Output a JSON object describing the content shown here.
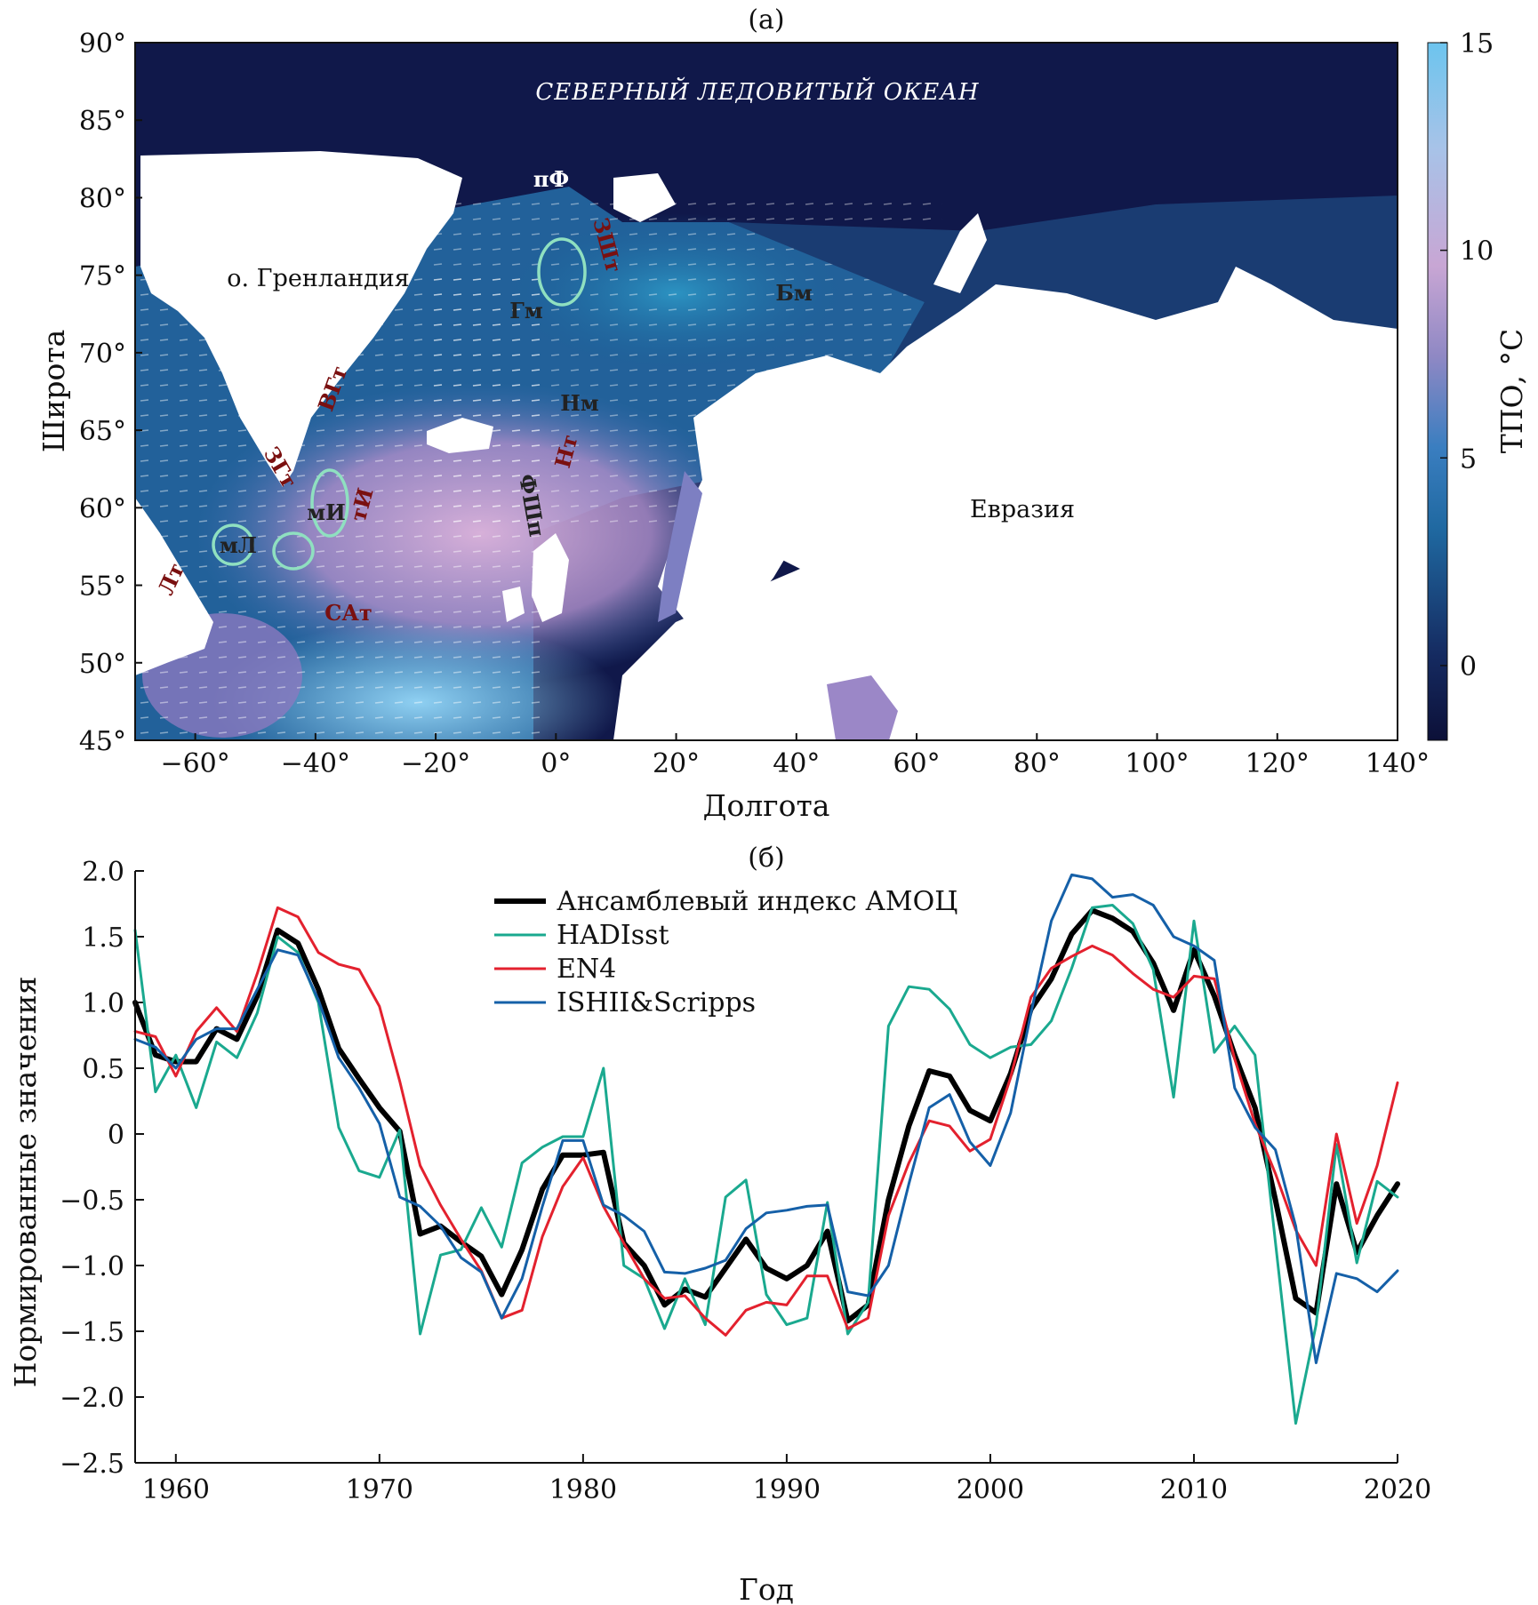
{
  "panel_a": {
    "label": "(a)",
    "ocean_title": "СЕВЕРНЫЙ ЛЕДОВИТЫЙ ОКЕАН",
    "greenland": "о. Гренландия",
    "eurasia": "Евразия",
    "x_title": "Долгота",
    "y_title": "Широта",
    "x_ticks": [
      "−60°",
      "−40°",
      "−20°",
      "0°",
      "20°",
      "40°",
      "60°",
      "80°",
      "100°",
      "120°",
      "140°"
    ],
    "y_ticks": [
      "90°",
      "85°",
      "80°",
      "75°",
      "70°",
      "65°",
      "60°",
      "55°",
      "50°",
      "45°"
    ],
    "colorbar_title": "ТПО, °C",
    "colorbar_ticks": [
      "15",
      "10",
      "5",
      "0"
    ],
    "colorbar_range": [
      -1.8,
      15
    ],
    "region_labels": {
      "pf": "пФ",
      "zsht": "ЗШт",
      "gm": "Гм",
      "bm": "Бм",
      "nm": "Нм",
      "nt": "Нт",
      "vgt": "ВГт",
      "zgt": "ЗГт",
      "mi": "мИ",
      "ti": "тИ",
      "ml": "мЛ",
      "lt": "Лт",
      "sat": "САт",
      "fshp": "ФШп"
    },
    "colors": {
      "ocean_dark": "#10184a",
      "sst_mid": "#2f7fb8",
      "sst_warm": "#c9a6d4",
      "sst_hot": "#7fc6ee",
      "ellipse": "#8fe0c0",
      "current_label": "#7a1010"
    }
  },
  "panel_b": {
    "label": "(б)",
    "x_title": "Год",
    "y_title": "Нормированные значения"
  },
  "chart_data": {
    "type": "line",
    "xlim": [
      1958,
      2020
    ],
    "ylim": [
      -2.5,
      2.0
    ],
    "x_ticks": [
      "1960",
      "1970",
      "1980",
      "1990",
      "2000",
      "2010",
      "2020"
    ],
    "y_ticks": [
      "2.0",
      "1.5",
      "1.0",
      "0.5",
      "0",
      "−0.5",
      "−1.0",
      "−1.5",
      "−2.0",
      "−2.5"
    ],
    "legend_position": "top-center",
    "x": [
      1958,
      1959,
      1960,
      1961,
      1962,
      1963,
      1964,
      1965,
      1966,
      1967,
      1968,
      1969,
      1970,
      1971,
      1972,
      1973,
      1974,
      1975,
      1976,
      1977,
      1978,
      1979,
      1980,
      1981,
      1982,
      1983,
      1984,
      1985,
      1986,
      1987,
      1988,
      1989,
      1990,
      1991,
      1992,
      1993,
      1994,
      1995,
      1996,
      1997,
      1998,
      1999,
      2000,
      2001,
      2002,
      2003,
      2004,
      2005,
      2006,
      2007,
      2008,
      2009,
      2010,
      2011,
      2012,
      2013,
      2014,
      2015,
      2016,
      2017,
      2018,
      2019,
      2020
    ],
    "series": [
      {
        "name": "Ансамблевый индекс АМОЦ",
        "color": "#000000",
        "width": 6,
        "values": [
          1.0,
          0.6,
          0.55,
          0.55,
          0.8,
          0.72,
          1.05,
          1.55,
          1.45,
          1.1,
          0.65,
          0.42,
          0.2,
          0.02,
          -0.76,
          -0.7,
          -0.82,
          -0.93,
          -1.22,
          -0.88,
          -0.42,
          -0.16,
          -0.16,
          -0.14,
          -0.83,
          -1.0,
          -1.3,
          -1.18,
          -1.24,
          -1.02,
          -0.8,
          -1.02,
          -1.1,
          -1.0,
          -0.74,
          -1.42,
          -1.3,
          -0.5,
          0.06,
          0.48,
          0.44,
          0.18,
          0.1,
          0.46,
          0.95,
          1.18,
          1.52,
          1.7,
          1.64,
          1.54,
          1.3,
          0.94,
          1.4,
          1.05,
          0.6,
          0.2,
          -0.5,
          -1.25,
          -1.36,
          -0.38,
          -0.9,
          -0.62,
          -0.38
        ]
      },
      {
        "name": "HADIsst",
        "color": "#1aa98f",
        "width": 3,
        "values": [
          1.55,
          0.32,
          0.6,
          0.2,
          0.7,
          0.58,
          0.92,
          1.5,
          1.38,
          1.0,
          0.05,
          -0.28,
          -0.33,
          0.03,
          -1.52,
          -0.92,
          -0.88,
          -0.56,
          -0.86,
          -0.22,
          -0.1,
          -0.02,
          -0.02,
          0.5,
          -1.0,
          -1.1,
          -1.48,
          -1.1,
          -1.45,
          -0.48,
          -0.35,
          -1.22,
          -1.45,
          -1.4,
          -0.52,
          -1.52,
          -1.28,
          0.82,
          1.12,
          1.1,
          0.95,
          0.68,
          0.58,
          0.66,
          0.68,
          0.86,
          1.26,
          1.72,
          1.74,
          1.6,
          1.25,
          0.28,
          1.62,
          0.62,
          0.82,
          0.6,
          -0.82,
          -2.2,
          -1.45,
          -0.08,
          -0.98,
          -0.36,
          -0.48
        ]
      },
      {
        "name": "EN4",
        "color": "#e3212e",
        "width": 3,
        "values": [
          0.78,
          0.74,
          0.44,
          0.78,
          0.96,
          0.78,
          1.22,
          1.72,
          1.65,
          1.38,
          1.29,
          1.25,
          0.97,
          0.4,
          -0.24,
          -0.54,
          -0.8,
          -1.04,
          -1.4,
          -1.34,
          -0.78,
          -0.4,
          -0.18,
          -0.55,
          -0.83,
          -1.1,
          -1.25,
          -1.23,
          -1.4,
          -1.53,
          -1.34,
          -1.28,
          -1.3,
          -1.08,
          -1.08,
          -1.48,
          -1.4,
          -0.62,
          -0.22,
          0.1,
          0.06,
          -0.13,
          -0.04,
          0.43,
          1.04,
          1.26,
          1.35,
          1.43,
          1.36,
          1.22,
          1.1,
          1.04,
          1.2,
          1.18,
          0.57,
          0.08,
          -0.3,
          -0.73,
          -1.0,
          0.0,
          -0.68,
          -0.24,
          0.39
        ]
      },
      {
        "name": "ISHII&Scripps",
        "color": "#1560a8",
        "width": 3,
        "values": [
          0.72,
          0.66,
          0.5,
          0.72,
          0.8,
          0.8,
          1.1,
          1.4,
          1.36,
          1.02,
          0.58,
          0.35,
          0.08,
          -0.48,
          -0.55,
          -0.7,
          -0.94,
          -1.05,
          -1.4,
          -1.1,
          -0.55,
          -0.05,
          -0.05,
          -0.54,
          -0.62,
          -0.74,
          -1.05,
          -1.06,
          -1.02,
          -0.96,
          -0.72,
          -0.6,
          -0.58,
          -0.55,
          -0.54,
          -1.2,
          -1.23,
          -1.0,
          -0.38,
          0.2,
          0.3,
          -0.06,
          -0.24,
          0.16,
          0.92,
          1.62,
          1.97,
          1.94,
          1.8,
          1.82,
          1.74,
          1.5,
          1.43,
          1.32,
          0.35,
          0.05,
          -0.12,
          -0.7,
          -1.74,
          -1.06,
          -1.1,
          -1.2,
          -1.04
        ]
      }
    ]
  }
}
